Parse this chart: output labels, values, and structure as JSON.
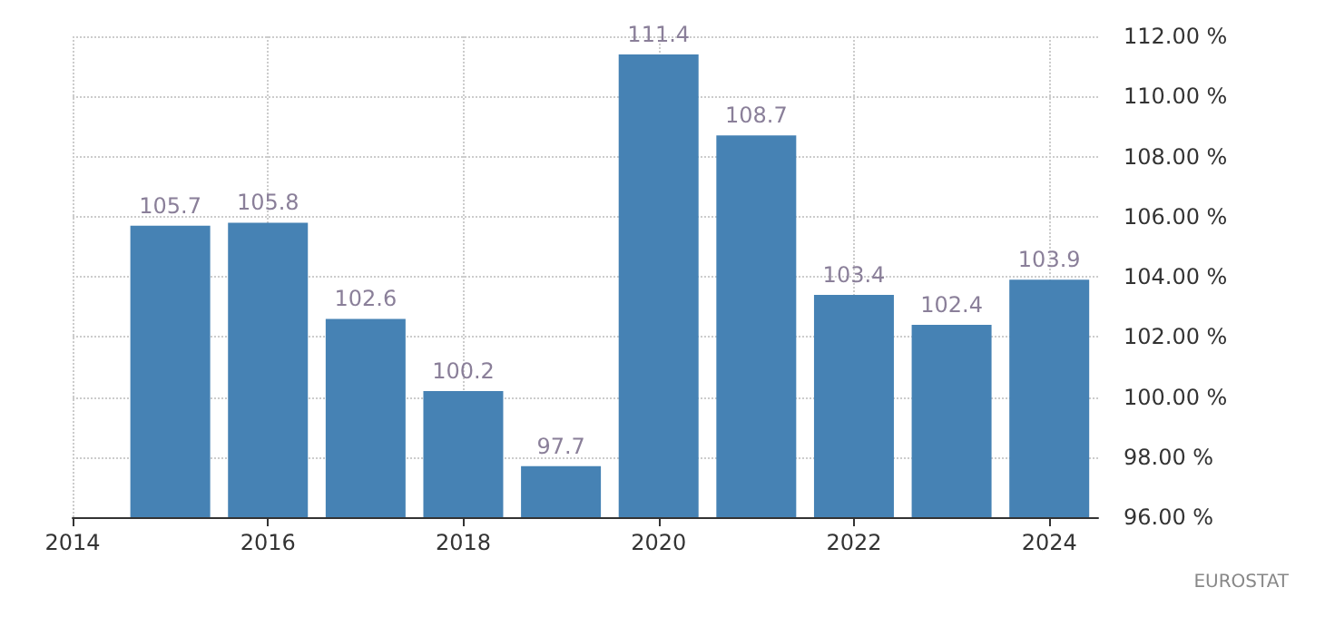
{
  "chart_data": {
    "type": "bar",
    "x": [
      2015,
      2016,
      2017,
      2018,
      2019,
      2020,
      2021,
      2022,
      2023,
      2024
    ],
    "values": [
      105.7,
      105.8,
      102.6,
      100.2,
      97.7,
      111.4,
      108.7,
      103.4,
      102.4,
      103.9
    ],
    "color": "#4682b4",
    "data_labels": true,
    "xlim": [
      2014,
      2024.5
    ],
    "xticks": [
      2014,
      2016,
      2018,
      2020,
      2022,
      2024
    ],
    "ylim": [
      96,
      112
    ],
    "yticks": [
      {
        "value": 96,
        "label": "96.00 %"
      },
      {
        "value": 98,
        "label": "98.00 %"
      },
      {
        "value": 100,
        "label": "100.00 %"
      },
      {
        "value": 102,
        "label": "102.00 %"
      },
      {
        "value": 104,
        "label": "104.00 %"
      },
      {
        "value": 106,
        "label": "106.00 %"
      },
      {
        "value": 108,
        "label": "108.00 %"
      },
      {
        "value": 110,
        "label": "110.00 %"
      },
      {
        "value": 112,
        "label": "112.00 %"
      }
    ],
    "grid": true,
    "annotations": [
      "EUROSTAT"
    ]
  }
}
